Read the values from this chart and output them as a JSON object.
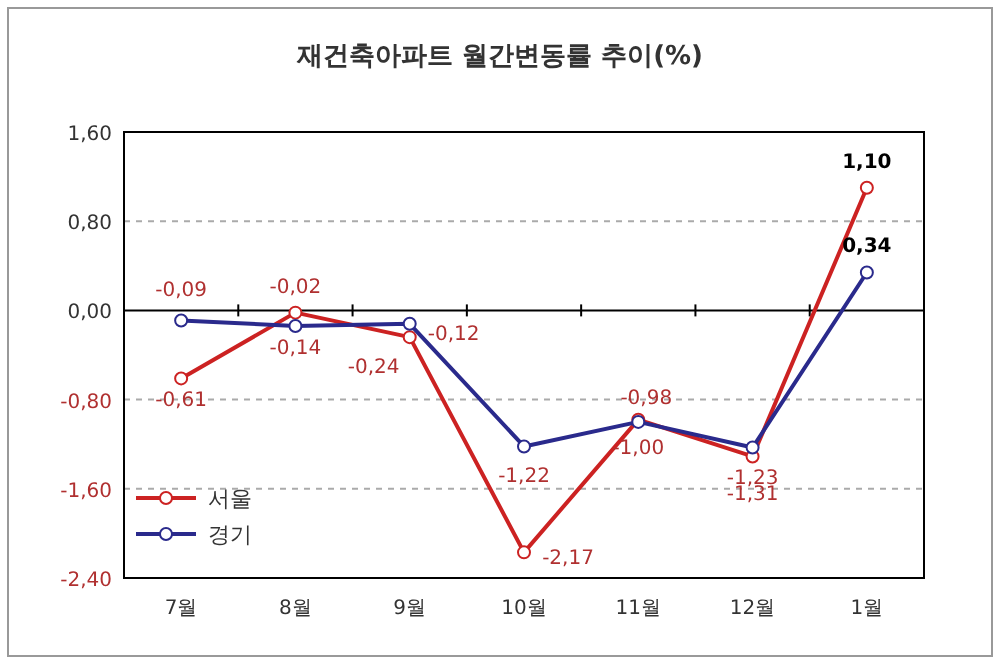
{
  "chart_data": {
    "type": "line",
    "title": "재건축아파트 월간변동률 추이(%)",
    "categories": [
      "7월",
      "8월",
      "9월",
      "10월",
      "11월",
      "12월",
      "1월"
    ],
    "series": [
      {
        "name": "서울",
        "color": "#cc2222",
        "values": [
          -0.61,
          -0.02,
          -0.24,
          -2.17,
          -0.98,
          -1.31,
          1.1
        ],
        "value_labels": [
          "-0,61",
          "-0,02",
          "-0,24",
          "-2,17",
          "-0,98",
          "-1,31",
          "1,10"
        ]
      },
      {
        "name": "경기",
        "color": "#2a2a8c",
        "values": [
          -0.09,
          -0.14,
          -0.12,
          -1.22,
          -1.0,
          -1.23,
          0.34
        ],
        "value_labels": [
          "-0,09",
          "-0,14",
          "-0,12",
          "-1,22",
          "-1,00",
          "-1,23",
          "0,34"
        ]
      }
    ],
    "ylim": [
      -2.4,
      1.6
    ],
    "yticks": [
      {
        "value": -2.4,
        "label": "-2,40"
      },
      {
        "value": -1.6,
        "label": "-1,60"
      },
      {
        "value": -0.8,
        "label": "-0,80"
      },
      {
        "value": 0,
        "label": "0,00"
      },
      {
        "value": 0.8,
        "label": "0,80"
      },
      {
        "value": 1.6,
        "label": "1,60"
      }
    ],
    "grid": "y",
    "legend": "bottom left",
    "marker": "circle",
    "line_style": "solid"
  }
}
